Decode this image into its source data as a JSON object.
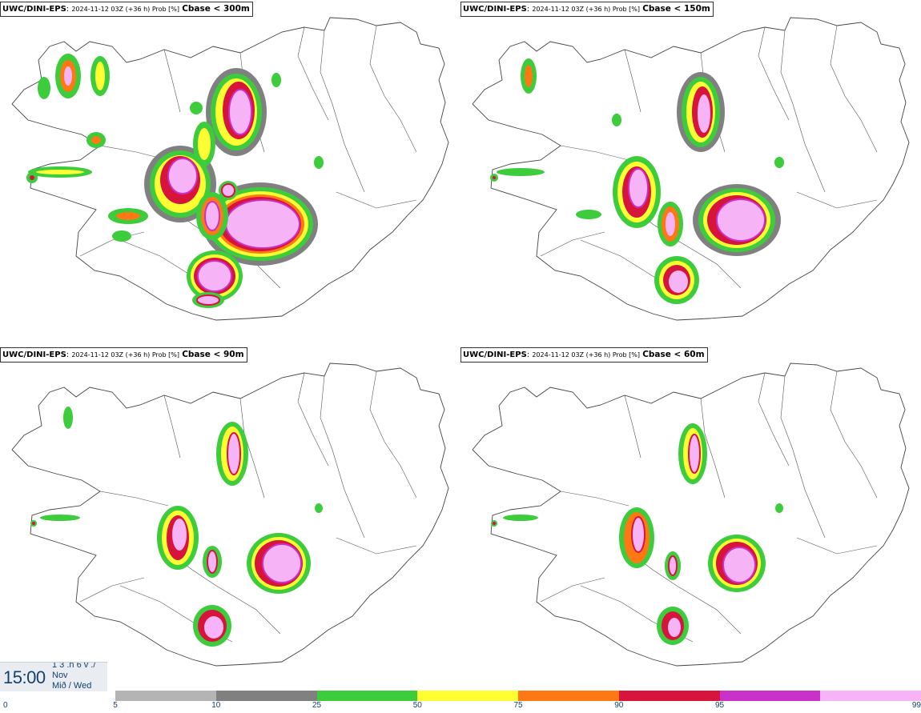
{
  "panels": [
    {
      "model": "UWC/DINI-EPS",
      "meta": "2024-11-12 03Z (+36 h) Prob [%]",
      "variable": "Cbase < 300m"
    },
    {
      "model": "UWC/DINI-EPS",
      "meta": "2024-11-12 03Z (+36 h) Prob [%]",
      "variable": "Cbase < 150m"
    },
    {
      "model": "UWC/DINI-EPS",
      "meta": "2024-11-12 03Z (+36 h) Prob [%]",
      "variable": "Cbase < 90m"
    },
    {
      "model": "UWC/DINI-EPS",
      "meta": "2024-11-12 03Z (+36 h) Prob [%]",
      "variable": "Cbase < 60m"
    }
  ],
  "valid_time": {
    "time": "15:00",
    "line1": "1 3 .n 6 v ./",
    "month": "Nov",
    "weekday": "Mið / Wed"
  },
  "colorbar": {
    "labels": [
      "0",
      "5",
      "10",
      "25",
      "50",
      "75",
      "90",
      "95",
      "99"
    ],
    "colors": [
      "#b4b4b4",
      "#808080",
      "#3ccc3c",
      "#ffff32",
      "#ff7814",
      "#d7143c",
      "#c832c8",
      "#f6b4f6"
    ]
  }
}
